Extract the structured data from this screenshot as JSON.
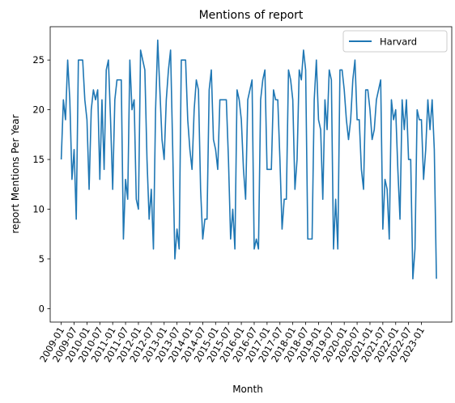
{
  "chart_data": {
    "type": "line",
    "title": "Mentions of report",
    "xlabel": "Month",
    "ylabel": "report Mentions Per Year",
    "ylim": [
      -1.35,
      28.35
    ],
    "yticks": [
      0,
      5,
      10,
      15,
      20,
      25
    ],
    "xticks": [
      "2009-01",
      "2009-07",
      "2010-01",
      "2010-07",
      "2011-01",
      "2011-07",
      "2012-01",
      "2012-07",
      "2013-01",
      "2013-07",
      "2014-01",
      "2014-07",
      "2015-01",
      "2015-07",
      "2016-01",
      "2016-07",
      "2017-01",
      "2017-07",
      "2018-01",
      "2018-07",
      "2019-01",
      "2019-07",
      "2020-01",
      "2020-07",
      "2021-01",
      "2021-07",
      "2022-01",
      "2022-07",
      "2023-01"
    ],
    "x_start": "2009-01",
    "grid": false,
    "legend_position": "top-right",
    "series": [
      {
        "name": "Harvard",
        "color": "#1f77b4",
        "values": [
          15,
          21,
          19,
          25,
          21,
          13,
          16,
          9,
          25,
          25,
          25,
          21,
          19,
          12,
          20,
          22,
          21,
          22,
          13,
          21,
          14,
          24,
          25,
          19,
          12,
          21,
          23,
          23,
          23,
          7,
          13,
          11,
          25,
          20,
          21,
          11,
          10,
          26,
          25,
          24,
          15,
          9,
          12,
          6,
          20,
          27,
          22,
          17,
          15,
          21,
          24,
          26,
          16,
          5,
          8,
          6,
          25,
          25,
          25,
          19,
          16,
          14,
          20,
          23,
          22,
          12,
          7,
          9,
          9,
          22,
          24,
          17,
          16,
          14,
          21,
          21,
          21,
          21,
          15,
          7,
          10,
          6,
          22,
          21,
          19,
          14,
          11,
          21,
          22,
          23,
          6,
          7,
          6,
          21,
          23,
          24,
          14,
          14,
          14,
          22,
          21,
          21,
          15,
          8,
          11,
          11,
          24,
          23,
          21,
          12,
          15,
          24,
          23,
          26,
          24,
          7,
          7,
          7,
          21,
          25,
          19,
          18,
          11,
          21,
          18,
          24,
          23,
          6,
          11,
          6,
          24,
          24,
          22,
          19,
          17,
          19,
          23,
          25,
          19,
          19,
          14,
          12,
          22,
          22,
          20,
          17,
          18,
          21,
          22,
          23,
          8,
          13,
          12,
          7,
          21,
          19,
          20,
          14,
          9,
          21,
          18,
          21,
          15,
          15,
          3,
          6,
          20,
          19,
          19,
          13,
          16,
          21,
          18,
          21,
          16,
          3
        ]
      }
    ]
  }
}
